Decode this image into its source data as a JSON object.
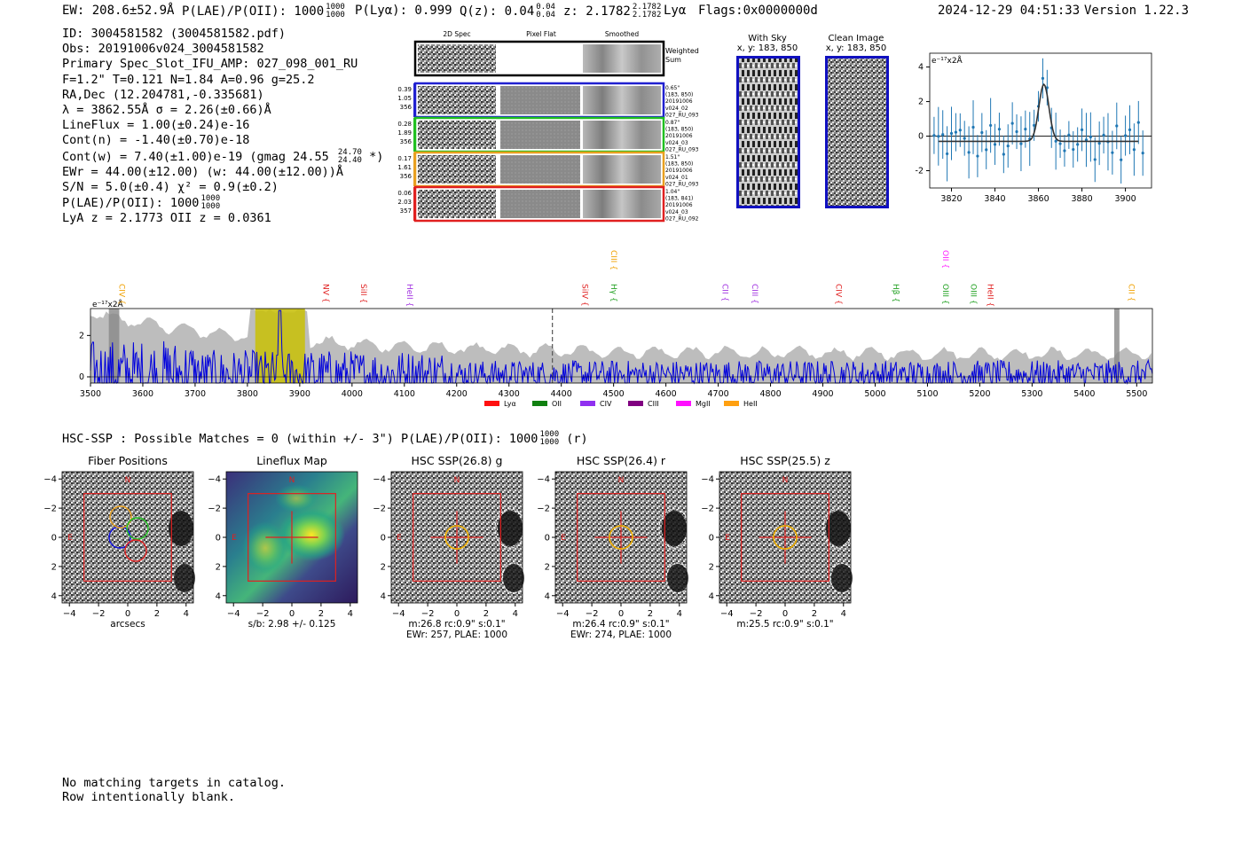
{
  "header": {
    "ew": "EW: 208.6±52.9Å",
    "plae_label": "P(LAE)/P(OII): 1000",
    "plae_hi": "1000",
    "plae_lo": "1000",
    "plya": "P(Lyα): 0.999",
    "qz_label": "Q(z): 0.04",
    "qz_hi": "0.04",
    "qz_lo": "0.04",
    "z_label": "z: 2.1782",
    "z_hi": "2.1782",
    "z_lo": "2.1782",
    "line": "Lyα",
    "flags": "Flags:0x0000000d",
    "timestamp": "2024-12-29 04:51:33",
    "version": "Version 1.22.3"
  },
  "info": {
    "id": "ID: 3004581582 (3004581582.pdf)",
    "obs": "Obs: 20191006v024_3004581582",
    "primary": "Primary Spec_Slot_IFU_AMP: 027_098_001_RU",
    "fiber": "F=1.2\"  T=0.121  N=1.84  A=0.96  g=25.2",
    "radec": "RA,Dec (12.204781,-0.335681)",
    "lambda": "λ = 3862.55Å  σ = 2.26(±0.66)Å",
    "lineflux": "LineFlux = 1.00(±0.24)e-16",
    "contn": "Cont(n) = -1.40(±0.70)e-18",
    "contw": "Cont(w) = 7.40(±1.00)e-19 (gmag 24.55",
    "contw_hi": "24.70",
    "contw_lo": "24.40",
    "contw_tail": "*)",
    "ewr": "EWr = 44.00(±12.00) (w: 44.00(±12.00))Å",
    "sn": "S/N = 5.0(±0.4)  χ² = 0.9(±0.2)",
    "plae": "P(LAE)/P(OII): 1000",
    "plae_hi": "1000",
    "plae_lo": "1000",
    "lyaz": "LyA z = 2.1773  OII z = 0.0361"
  },
  "cutouts": {
    "col_labels": [
      "2D Spec",
      "Pixel Flat",
      "Smoothed"
    ],
    "weighted_sum": [
      "Weighted",
      "Sum"
    ],
    "rows": [
      {
        "left": [
          "0.39",
          "1.05",
          "356"
        ],
        "right": [
          "0.65\"",
          "(183, 850)",
          "20191006",
          "v024_02",
          "027_RU_093"
        ],
        "color": "#2020d0"
      },
      {
        "left": [
          "0.28",
          "1.89",
          "356"
        ],
        "right": [
          "0.87\"",
          "(183, 850)",
          "20191006",
          "v024_03",
          "027_RU_093"
        ],
        "color": "#20c020"
      },
      {
        "left": [
          "0.17",
          "1.61",
          "356"
        ],
        "right": [
          "1.51\"",
          "(183, 850)",
          "20191006",
          "v024_01",
          "027_RU_093"
        ],
        "color": "#e8a020"
      },
      {
        "left": [
          "0.06",
          "2.03",
          "357"
        ],
        "right": [
          "1.04\"",
          "(183, 841)",
          "20191006",
          "v024_03",
          "027_RU_092"
        ],
        "color": "#e02020"
      }
    ]
  },
  "sky": {
    "with_sky": "With Sky",
    "with_sky_xy": "x, y: 183, 850",
    "clean": "Clean Image",
    "clean_xy": "x, y: 183, 850"
  },
  "zoom_chart": {
    "type": "scatter",
    "ylabel": "e⁻¹⁷x2Å",
    "xlim": [
      3810,
      3912
    ],
    "ylim": [
      -3,
      4.8
    ],
    "xticks": [
      3820,
      3840,
      3860,
      3880,
      3900
    ],
    "yticks": [
      4,
      2,
      0,
      -2
    ],
    "fit_baseline": -0.3,
    "fit_peak": 3.3,
    "fit_center": 3862.5,
    "fit_sigma": 2.3
  },
  "chart_data": {
    "type": "line",
    "ylabel": "e⁻¹⁷x2Å",
    "xlim": [
      3500,
      5530
    ],
    "ylim": [
      -0.3,
      3.3
    ],
    "xticks": [
      3500,
      3600,
      3700,
      3800,
      3900,
      4000,
      4100,
      4200,
      4300,
      4400,
      4500,
      4600,
      4700,
      4800,
      4900,
      5000,
      5100,
      5200,
      5300,
      5400,
      5500
    ],
    "yticks": [
      0,
      2
    ],
    "emission_center": 3862,
    "dashed_line": 4383,
    "lines": [
      {
        "name": "CIV",
        "x": 3550,
        "color": "#f0a000",
        "tier": 0
      },
      {
        "name": "NV",
        "x": 3940,
        "color": "#e02020",
        "tier": 0
      },
      {
        "name": "SiII",
        "x": 4012,
        "color": "#e02020",
        "tier": 0
      },
      {
        "name": "HeII",
        "x": 4100,
        "color": "#a030e0",
        "tier": 0
      },
      {
        "name": "SiIV",
        "x": 4435,
        "color": "#e02020",
        "tier": 0
      },
      {
        "name": "CIII",
        "x": 4490,
        "color": "#f0a000",
        "tier": 1
      },
      {
        "name": "Hγ",
        "x": 4490,
        "color": "#20a020",
        "tier": 0
      },
      {
        "name": "CII",
        "x": 4703,
        "color": "#a030e0",
        "tier": 0
      },
      {
        "name": "CIII",
        "x": 4760,
        "color": "#a030e0",
        "tier": 0
      },
      {
        "name": "CIV",
        "x": 4920,
        "color": "#e02020",
        "tier": 0
      },
      {
        "name": "Hβ",
        "x": 5030,
        "color": "#20a020",
        "tier": 0
      },
      {
        "name": "OII",
        "x": 5125,
        "color": "#ff20ff",
        "tier": 1
      },
      {
        "name": "OIII",
        "x": 5125,
        "color": "#20a020",
        "tier": 0
      },
      {
        "name": "OIII",
        "x": 5178,
        "color": "#20a020",
        "tier": 0
      },
      {
        "name": "HeII",
        "x": 5210,
        "color": "#e02020",
        "tier": 0
      },
      {
        "name": "CII",
        "x": 5480,
        "color": "#f0a000",
        "tier": 0
      }
    ],
    "legend": [
      {
        "name": "Lyα",
        "color": "#ff1010"
      },
      {
        "name": "OII",
        "color": "#108010"
      },
      {
        "name": "CIV",
        "color": "#9030f0"
      },
      {
        "name": "CIII",
        "color": "#800080"
      },
      {
        "name": "MgII",
        "color": "#ff10ff"
      },
      {
        "name": "HeII",
        "color": "#ffa010"
      }
    ]
  },
  "hsc": {
    "summary": "HSC-SSP : Possible Matches = 0 (within +/- 3\")  P(LAE)/P(OII): 1000",
    "sum_hi": "1000",
    "sum_lo": "1000",
    "sum_tail": "(r)",
    "axis_label": "arcsecs",
    "ticks": [
      "−4",
      "−2",
      "0",
      "2",
      "4"
    ],
    "panels": [
      {
        "title": "Fiber Positions",
        "caption": [
          "arcsecs"
        ]
      },
      {
        "title": "Lineflux Map",
        "caption": [
          "s/b: 2.98 +/- 0.125"
        ]
      },
      {
        "title": "HSC SSP(26.8) g",
        "caption": [
          "m:26.8 rc:0.9\"  s:0.1\"",
          "EWr: 257, PLAE: 1000"
        ]
      },
      {
        "title": "HSC SSP(26.4) r",
        "caption": [
          "m:26.4 rc:0.9\"  s:0.1\"",
          "EWr: 274, PLAE: 1000"
        ]
      },
      {
        "title": "HSC SSP(25.5) z",
        "caption": [
          "m:25.5 rc:0.9\"  s:0.1\""
        ]
      }
    ],
    "north": "N",
    "east": "E"
  },
  "footer": {
    "line1": "No matching targets in catalog.",
    "line2": "Row intentionally blank."
  }
}
